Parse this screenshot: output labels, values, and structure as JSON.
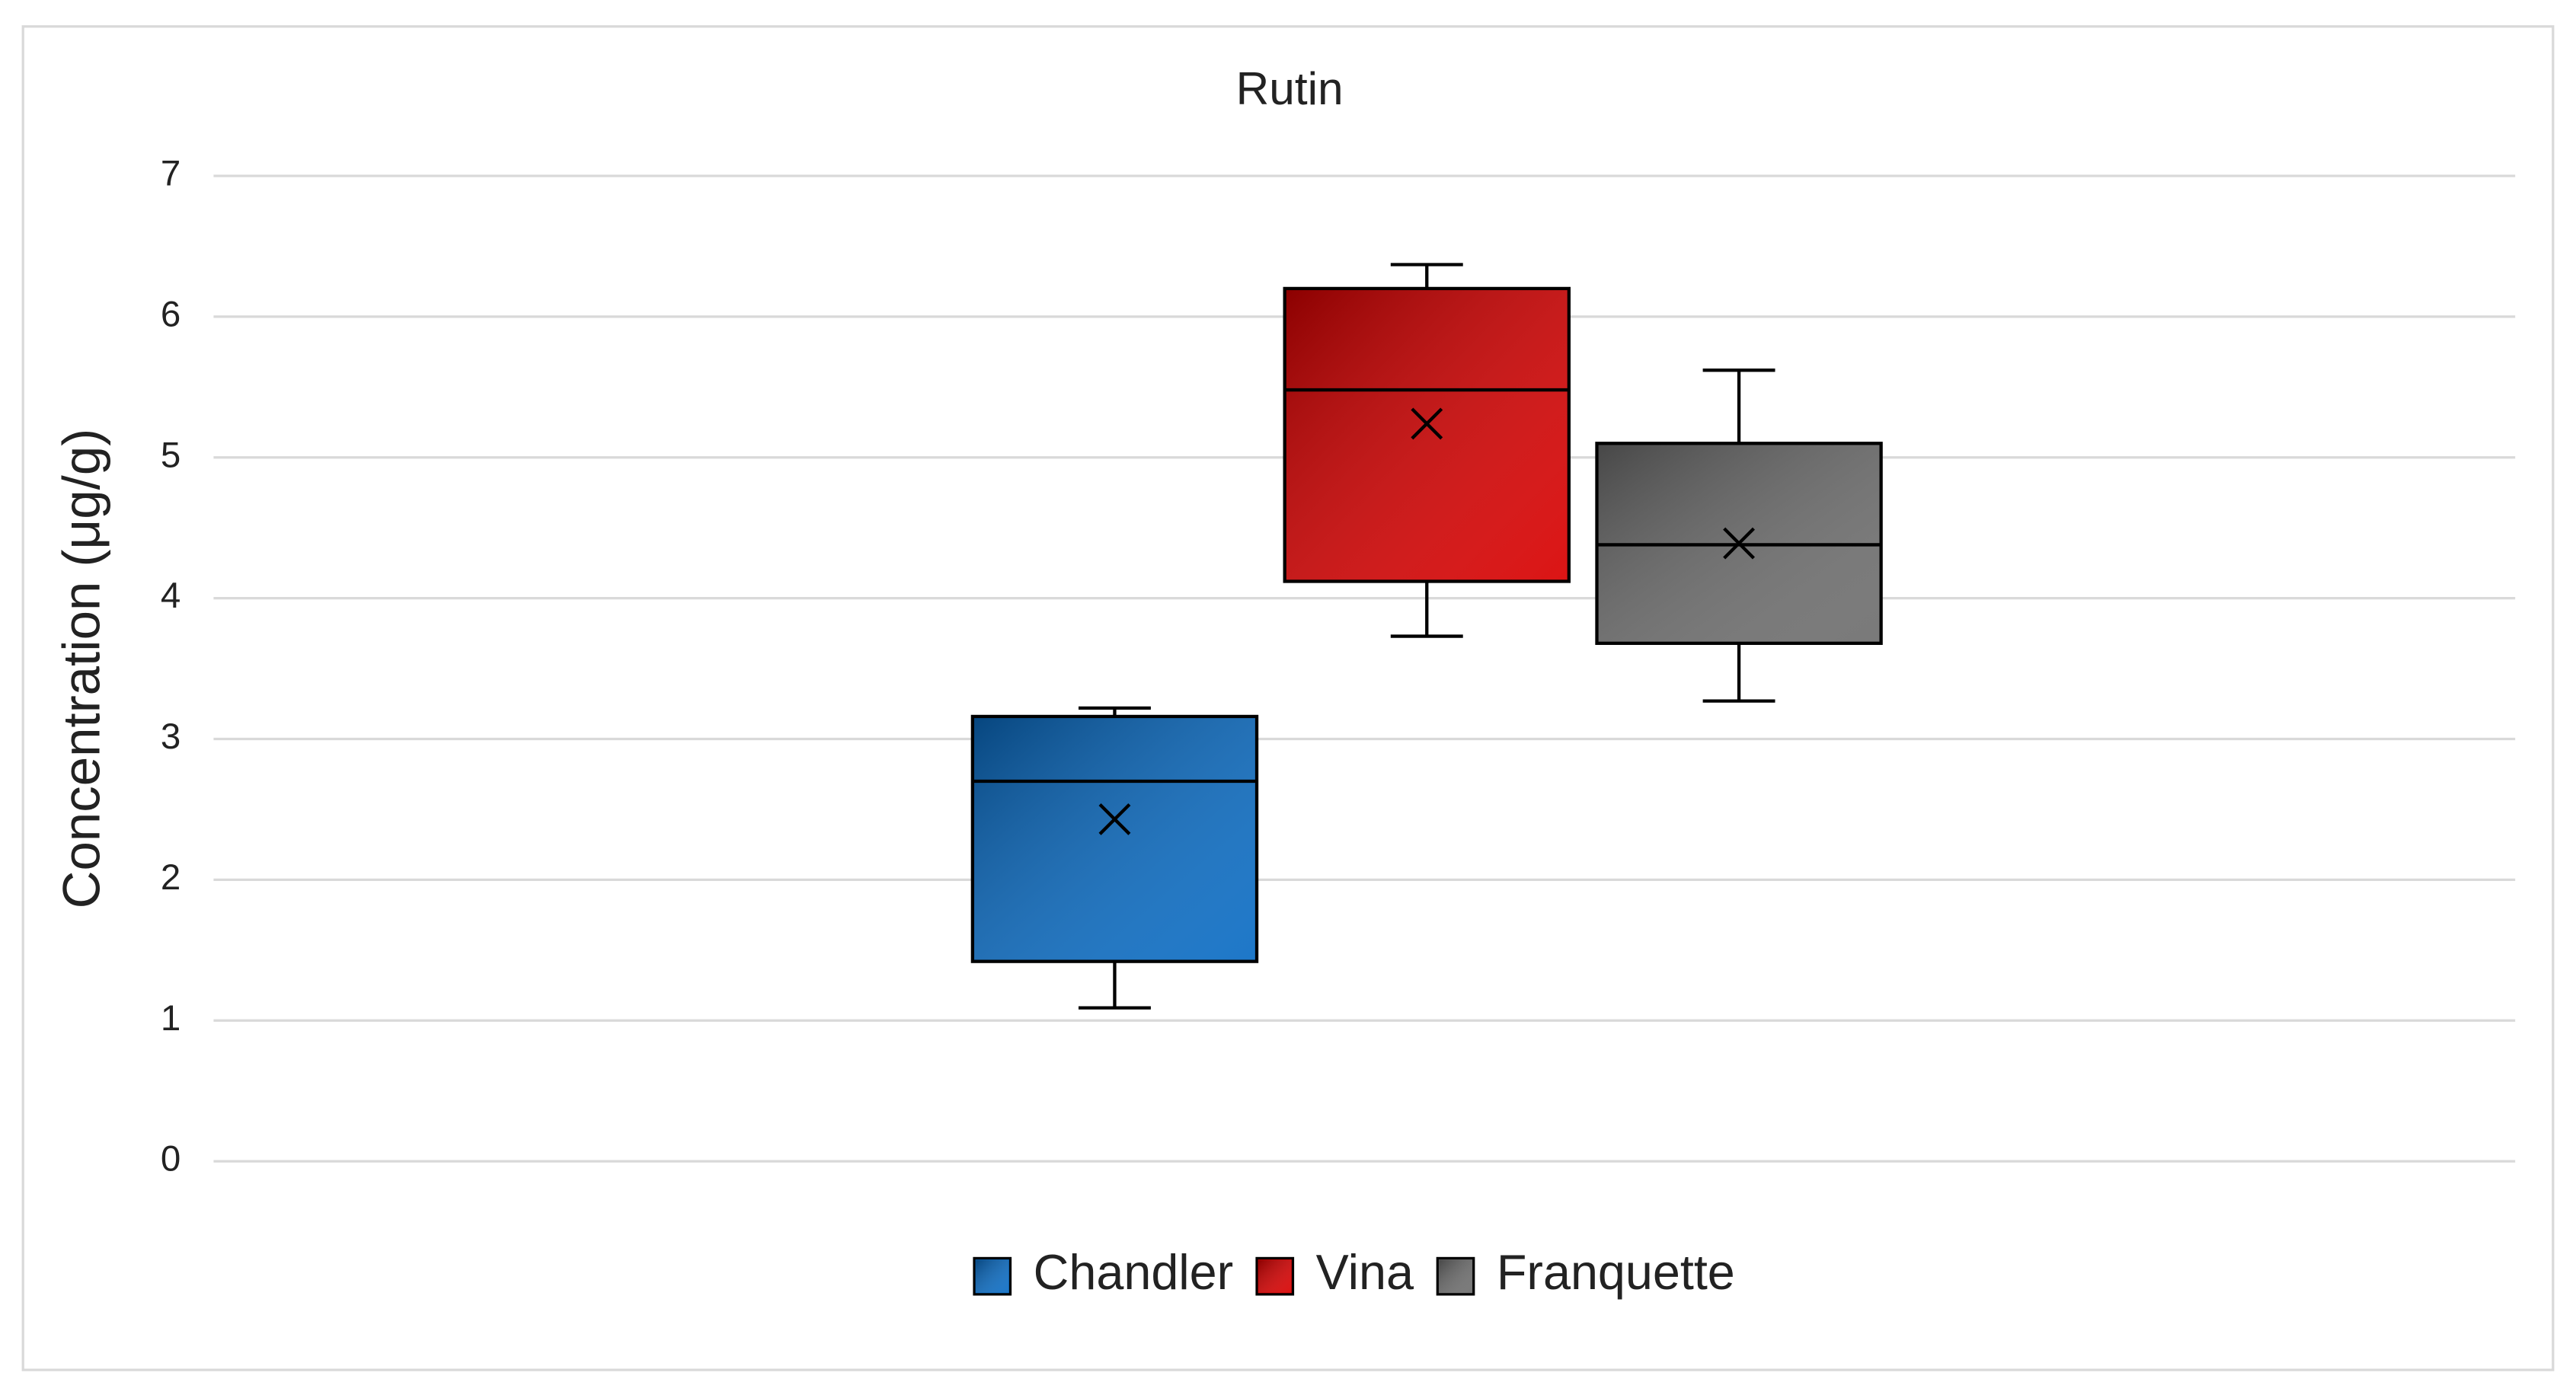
{
  "chart_data": {
    "type": "box",
    "title": "Rutin",
    "y_label": "Concentration (μg/g)",
    "ylim": [
      0,
      7
    ],
    "yticks": [
      0,
      1,
      2,
      3,
      4,
      5,
      6,
      7
    ],
    "grid": true,
    "legend": "bottom",
    "series": [
      {
        "name": "Chandler",
        "color": "#0a6cc4",
        "min": 1.09,
        "q1": 1.42,
        "median": 2.7,
        "q3": 3.16,
        "max": 3.22,
        "mean": 2.43
      },
      {
        "name": "Vina",
        "color": "#d80000",
        "min": 3.73,
        "q1": 4.12,
        "median": 5.48,
        "q3": 6.2,
        "max": 6.37,
        "mean": 5.24
      },
      {
        "name": "Franquette",
        "color": "#6e6e6e",
        "min": 3.27,
        "q1": 3.68,
        "median": 4.38,
        "q3": 5.1,
        "max": 5.62,
        "mean": 4.39
      }
    ]
  }
}
